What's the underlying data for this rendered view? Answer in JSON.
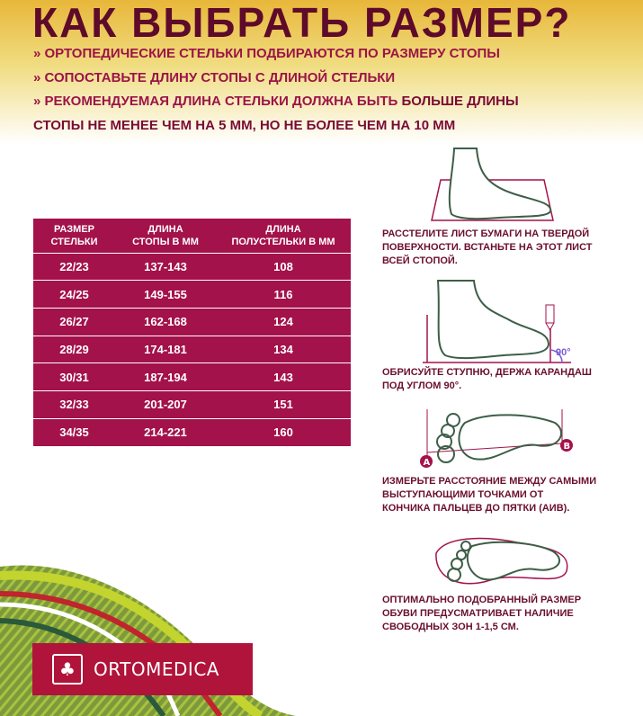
{
  "title": "КАК ВЫБРАТЬ РАЗМЕР?",
  "bullets": [
    "» ОРТОПЕДИЧЕСКИЕ СТЕЛЬКИ ПОДБИРАЮТСЯ ПО РАЗМЕРУ СТОПЫ",
    "» СОПОСТАВЬТЕ ДЛИНУ СТОПЫ С ДЛИНОЙ СТЕЛЬКИ",
    "» РЕКОМЕНДУЕМАЯ ДЛИНА СТЕЛЬКИ ДОЛЖНА БЫТЬ "
  ],
  "bullet3_bold": "БОЛЬШЕ ДЛИНЫ",
  "bullet3_cont": "СТОПЫ НЕ МЕНЕЕ ЧЕМ НА 5 ММ, НО НЕ БОЛЕЕ ЧЕМ НА 10 ММ",
  "table": {
    "headers": [
      [
        "РАЗМЕР",
        "СТЕЛЬКИ"
      ],
      [
        "ДЛИНА",
        "СТОПЫ В ММ"
      ],
      [
        "ДЛИНА",
        "ПОЛУСТЕЛЬКИ В ММ"
      ]
    ],
    "rows": [
      [
        "22/23",
        "137-143",
        "108"
      ],
      [
        "24/25",
        "149-155",
        "116"
      ],
      [
        "26/27",
        "162-168",
        "124"
      ],
      [
        "28/29",
        "174-181",
        "134"
      ],
      [
        "30/31",
        "187-194",
        "143"
      ],
      [
        "32/33",
        "201-207",
        "151"
      ],
      [
        "34/35",
        "214-221",
        "160"
      ]
    ]
  },
  "steps": [
    [
      "РАССТЕЛИТЕ ЛИСТ БУМАГИ НА ТВЕРДОЙ",
      "ПОВЕРХНОСТИ. ВСТАНЬТЕ НА ЭТОТ ЛИСТ",
      "ВСЕЙ СТОПОЙ."
    ],
    [
      "ОБРИСУЙТЕ СТУПНЮ, ДЕРЖА КАРАНДАШ",
      "ПОД УГЛОМ 90°."
    ],
    [
      "ИЗМЕРЬТЕ РАССТОЯНИЕ МЕЖДУ САМЫМИ",
      "ВЫСТУПАЮЩИМИ ТОЧКАМИ ОТ",
      "КОНЧИКА ПАЛЬЦЕВ ДО ПЯТКИ (АИВ)."
    ],
    [
      "ОПТИМАЛЬНО ПОДОБРАННЫЙ РАЗМЕР",
      "ОБУВИ ПРЕДУСМАТРИВАЕТ НАЛИЧИЕ",
      "СВОБОДНЫХ ЗОН 1-1,5 СМ."
    ]
  ],
  "angle_label": "90°",
  "point_a": "A",
  "point_b": "B",
  "brand": "ORTOMEDICA",
  "colors": {
    "maroon": "#a3124a",
    "dark": "#5e0a2a",
    "green": "#3d5e47",
    "logo_red": "#b0143a"
  }
}
